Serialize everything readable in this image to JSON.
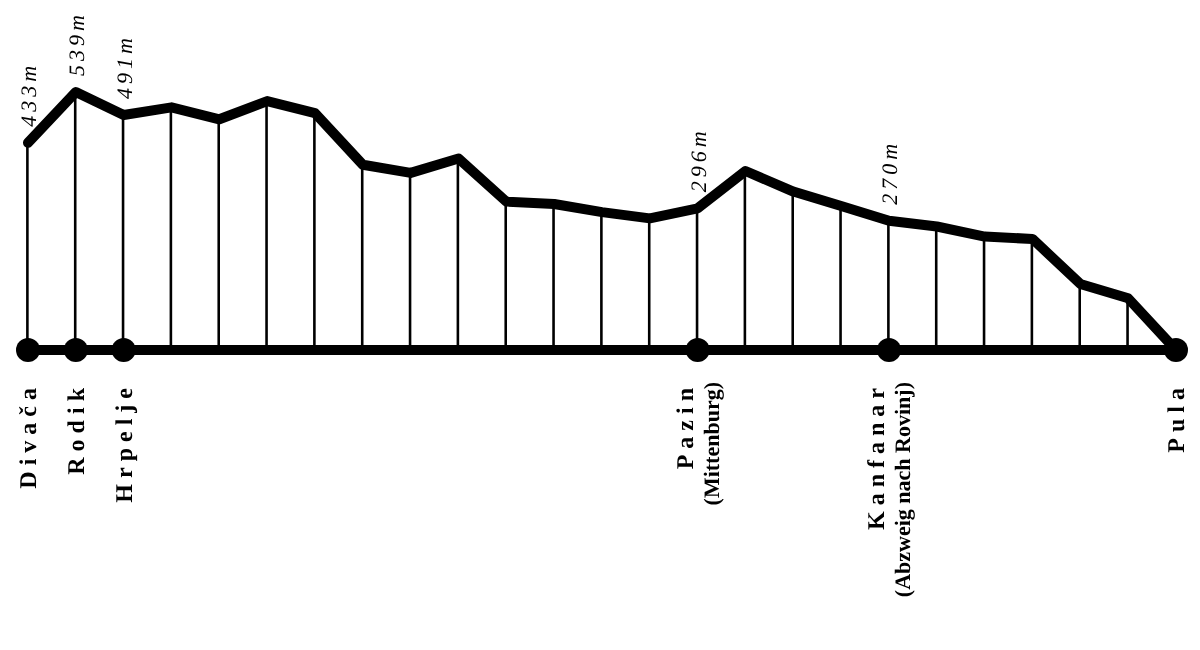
{
  "chart_data": {
    "type": "line",
    "categories": [
      "Divača",
      "Rodik",
      "Hrpelje",
      null,
      null,
      null,
      null,
      null,
      null,
      null,
      null,
      null,
      null,
      null,
      "Pazin\n(Mittenburg)",
      null,
      null,
      null,
      "Kanfanar\n(Abzweig nach Rovinj)",
      null,
      null,
      null,
      null,
      null,
      "Pula"
    ],
    "series": [
      {
        "type": "bar",
        "color": "#000000",
        "values": [
          433,
          539,
          491,
          507,
          482,
          520,
          495,
          387,
          370,
          400,
          310,
          305,
          288,
          275,
          296,
          374,
          331,
          301,
          270,
          258,
          237,
          232,
          138,
          108,
          0
        ]
      },
      {
        "color": "#000000",
        "values": [
          433,
          539,
          491,
          507,
          482,
          520,
          495,
          387,
          370,
          400,
          310,
          305,
          288,
          275,
          296,
          374,
          331,
          301,
          270,
          258,
          237,
          232,
          138,
          108,
          0
        ],
        "value_labels": [
          "433m",
          "539m",
          "491m",
          null,
          null,
          null,
          null,
          null,
          null,
          null,
          null,
          null,
          null,
          null,
          "296m",
          null,
          null,
          null,
          "270m",
          null,
          null,
          null,
          null,
          null,
          null
        ]
      },
      {
        "type": "scatter",
        "color": "#000000",
        "marker": "circle",
        "values": [
          0,
          0,
          0,
          null,
          null,
          null,
          null,
          null,
          null,
          null,
          null,
          null,
          null,
          null,
          0,
          null,
          null,
          null,
          0,
          null,
          null,
          null,
          null,
          null,
          0
        ]
      }
    ],
    "legend": false,
    "grid": false
  }
}
